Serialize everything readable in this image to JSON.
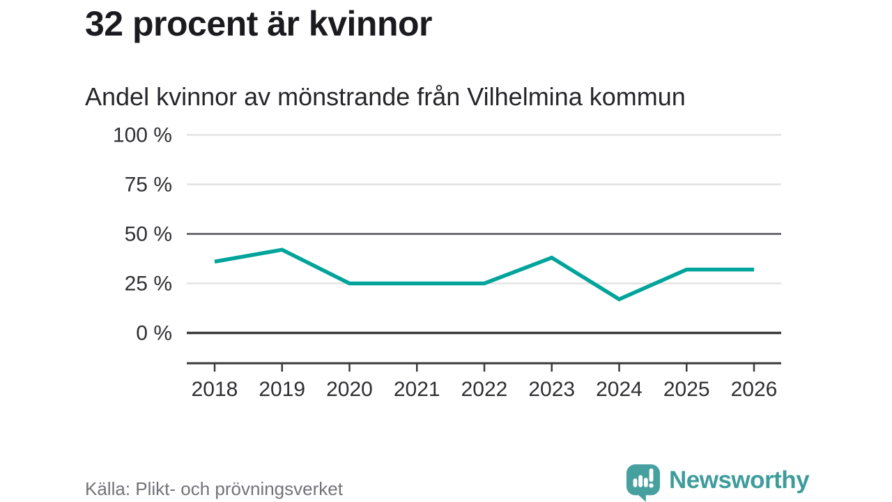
{
  "header": {
    "title": "32 procent är kvinnor",
    "subtitle": "Andel kvinnor av mönstrande från Vilhelmina kommun"
  },
  "footer": {
    "source": "Källa: Plikt- och prövningsverket",
    "logo_text": "Newsworthy"
  },
  "colors": {
    "line": "#00a49b",
    "brand": "#3f9c9c",
    "grid_light": "#e3e3e3",
    "grid_mid": "#6b6b74",
    "axis_dark": "#3a3a3a",
    "text_dark": "#1b1b1f",
    "text_gray": "#72727a"
  },
  "chart_data": {
    "type": "line",
    "title": "32 procent är kvinnor",
    "subtitle": "Andel kvinnor av mönstrande från Vilhelmina kommun",
    "x": [
      2018,
      2019,
      2020,
      2021,
      2022,
      2023,
      2024,
      2025,
      2026
    ],
    "series": [
      {
        "name": "Andel kvinnor av mönstrande",
        "values": [
          36,
          42,
          25,
          25,
          25,
          38,
          17,
          32,
          32
        ]
      }
    ],
    "unit": "%",
    "ylim": [
      0,
      100
    ],
    "yticks": [
      0,
      25,
      50,
      75,
      100
    ],
    "ytick_labels": [
      "0 %",
      "25 %",
      "50 %",
      "75 %",
      "100 %"
    ],
    "grid": "horizontal-only",
    "legend": "none",
    "source": "Källa: Plikt- och prövningsverket"
  }
}
